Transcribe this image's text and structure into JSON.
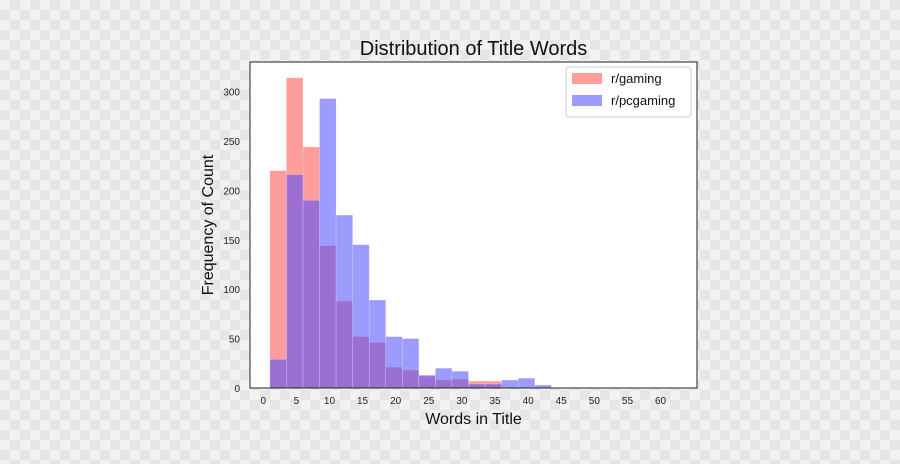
{
  "chart_data": {
    "type": "histogram",
    "title": "Distribution of Title Words",
    "xlabel": "Words in Title",
    "ylabel": "Frequency of Count",
    "xlim": [
      -2,
      65.5
    ],
    "ylim": [
      0,
      330
    ],
    "xticks": [
      0,
      5,
      10,
      15,
      20,
      25,
      30,
      35,
      40,
      45,
      50,
      55,
      60
    ],
    "yticks": [
      0,
      50,
      100,
      150,
      200,
      250,
      300
    ],
    "grid": false,
    "legend_position": "upper right",
    "bin_width": 2.5,
    "series": [
      {
        "name": "r/gaming",
        "color": "#ff4a4a",
        "opacity": 0.55,
        "bin_start": 1,
        "values": [
          220,
          314,
          244,
          144,
          88,
          52,
          46,
          21,
          18,
          12,
          8,
          9,
          7,
          7,
          0,
          0,
          0,
          0,
          0,
          0,
          0,
          0,
          0,
          0,
          0,
          0,
          0
        ]
      },
      {
        "name": "r/pcgaming",
        "color": "#4a4aff",
        "opacity": 0.55,
        "bin_start": 1,
        "values": [
          29,
          216,
          190,
          293,
          175,
          145,
          89,
          52,
          50,
          13,
          20,
          17,
          4,
          4,
          8,
          10,
          3,
          0,
          0,
          0,
          0,
          0,
          0,
          0,
          0,
          0,
          0
        ]
      }
    ],
    "overlap_visible_note": ""
  }
}
